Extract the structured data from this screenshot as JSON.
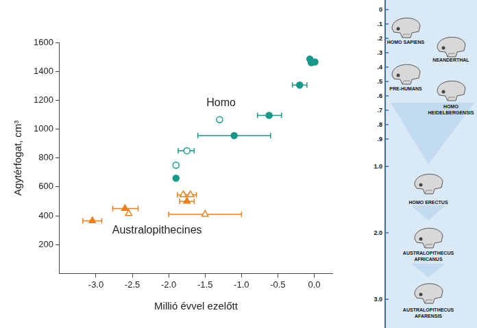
{
  "chart_data": {
    "type": "scatter",
    "x_label": "Millió évvel ezelőtt",
    "y_label": "Agytérfogat, cm³",
    "xlim": [
      -3.5,
      0.25
    ],
    "xticks": [
      {
        "value": -3,
        "label": "-3.0"
      },
      {
        "value": -2.5,
        "label": "-2.5"
      },
      {
        "value": -2,
        "label": "-2.0"
      },
      {
        "value": -1.5,
        "label": "-1.5"
      },
      {
        "value": -1,
        "label": "-1.0"
      },
      {
        "value": -0.5,
        "label": "-0.5"
      },
      {
        "value": 0,
        "label": "0.0"
      }
    ],
    "ylim": [
      0,
      1600
    ],
    "yticks": [
      200,
      400,
      600,
      800,
      1000,
      1200,
      1400,
      1600
    ],
    "grid": false,
    "series": [
      {
        "color": "#e8801e",
        "marker": "triangle",
        "x": [
          -3.05,
          -2.6,
          -1.75
        ],
        "values": [
          365,
          450,
          500
        ],
        "x_error": [
          [
            -3.18,
            -2.92
          ],
          [
            -2.77,
            -2.42
          ],
          [
            -1.85,
            -1.65
          ]
        ]
      },
      {
        "color": "#e8801e",
        "marker": "triangle-open",
        "x": [
          -2.55,
          -1.8,
          -1.7,
          -1.5
        ],
        "values": [
          415,
          545,
          545,
          410
        ],
        "x_error": [
          null,
          [
            -1.88,
            -1.72
          ],
          [
            -1.78,
            -1.62
          ],
          [
            -2.0,
            -1.0
          ]
        ]
      },
      {
        "color": "#17998a",
        "marker": "circle",
        "x": [
          -1.9,
          -1.1,
          -0.62,
          -0.2,
          -0.06,
          -0.04,
          0.01
        ],
        "values": [
          660,
          955,
          1095,
          1305,
          1485,
          1460,
          1465
        ],
        "x_error": [
          null,
          [
            -1.6,
            -0.6
          ],
          [
            -0.78,
            -0.45
          ],
          [
            -0.3,
            -0.1
          ],
          null,
          null,
          null
        ]
      },
      {
        "color": "#17998a",
        "marker": "circle-open",
        "x": [
          -1.9,
          -1.75,
          -1.3
        ],
        "values": [
          750,
          850,
          1065
        ],
        "x_error": [
          null,
          [
            -1.87,
            -1.65
          ],
          null
        ]
      }
    ],
    "annotations": [
      {
        "text": "Homo",
        "x": -1.28,
        "y": 1180
      },
      {
        "text": "Australopithecines",
        "x": -2.16,
        "y": 300
      }
    ]
  },
  "timeline": {
    "ticks": [
      0,
      {
        "value": 0.1,
        "label": ".1"
      },
      {
        "value": 0.2,
        "label": ".2"
      },
      {
        "value": 0.3,
        "label": ".3"
      },
      {
        "value": 0.4,
        "label": ".4"
      },
      {
        "value": 0.5,
        "label": ".5"
      },
      {
        "value": 0.6,
        "label": ".6"
      },
      {
        "value": 0.7,
        "label": ".7"
      },
      {
        "value": 0.8,
        "label": ".8"
      },
      {
        "value": 0.9,
        "label": ".9"
      },
      {
        "value": 1,
        "label": "1.0"
      },
      {
        "value": 2,
        "label": "2.0"
      },
      {
        "value": 3,
        "label": "3.0"
      }
    ],
    "labels": [
      "HOMO SAPIENS",
      "NEANDERTHAL",
      "PRE-HUMANS",
      "HOMO HEIDELBERGENSIS",
      "HOMO ERECTUS",
      "AUSTRALOPITHECUS AFRICANUS",
      "AUSTRALOPITHECUS AFARENSIS"
    ]
  }
}
